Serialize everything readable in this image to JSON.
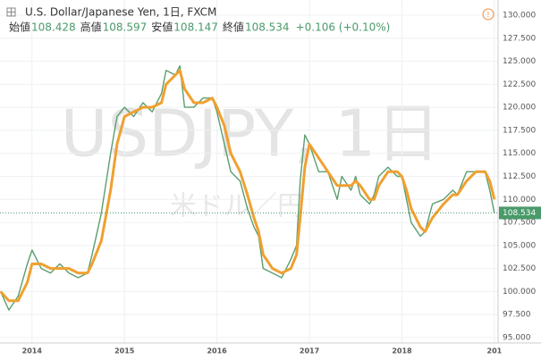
{
  "chart_data": {
    "type": "line",
    "title": "U.S. Dollar/Japanese Yen, 1日, FXCM",
    "ohlc": [
      {
        "label": "始値",
        "value": 108.428
      },
      {
        "label": "高値",
        "value": 108.597
      },
      {
        "label": "安値",
        "value": 108.147
      },
      {
        "label": "終値",
        "value": 108.534
      }
    ],
    "change_label": "+0.106 (+0.10%)",
    "watermark": "USDJPY, 1日",
    "watermark_sub": "米ドル／円",
    "last_value": 108.534,
    "x": [
      2013.66,
      2013.75,
      2013.85,
      2013.95,
      2014.0,
      2014.1,
      2014.2,
      2014.3,
      2014.4,
      2014.5,
      2014.6,
      2014.65,
      2014.75,
      2014.85,
      2014.92,
      2015.0,
      2015.1,
      2015.2,
      2015.3,
      2015.4,
      2015.45,
      2015.55,
      2015.6,
      2015.65,
      2015.75,
      2015.85,
      2015.95,
      2016.0,
      2016.08,
      2016.15,
      2016.25,
      2016.33,
      2016.4,
      2016.45,
      2016.5,
      2016.6,
      2016.7,
      2016.8,
      2016.86,
      2016.9,
      2016.95,
      2017.0,
      2017.1,
      2017.2,
      2017.3,
      2017.35,
      2017.45,
      2017.5,
      2017.55,
      2017.65,
      2017.7,
      2017.75,
      2017.85,
      2017.95,
      2018.0,
      2018.05,
      2018.1,
      2018.2,
      2018.25,
      2018.33,
      2018.45,
      2018.55,
      2018.6,
      2018.7,
      2018.8,
      2018.9,
      2018.95,
      2019.0
    ],
    "series": [
      {
        "color": "#5b9e6f",
        "values": [
          100,
          98,
          99.5,
          103,
          104.5,
          102.5,
          102,
          103,
          102,
          101.5,
          102,
          104,
          108.5,
          115,
          119,
          120,
          119,
          120.5,
          119.5,
          121.5,
          124,
          123.5,
          124.5,
          120,
          120,
          121,
          121,
          119.5,
          116,
          113,
          112,
          109,
          107,
          106,
          102.5,
          102,
          101.5,
          103.5,
          105,
          112,
          117,
          116,
          113,
          113,
          110,
          112.5,
          111,
          112.5,
          110.5,
          109.5,
          110.5,
          112.5,
          113.5,
          112.5,
          112.5,
          110,
          107.5,
          106,
          106.5,
          109.5,
          110,
          111,
          110.5,
          113,
          113,
          113,
          111,
          108.5
        ]
      },
      {
        "color": "#f0a030",
        "values": [
          100,
          99,
          99,
          101,
          103,
          103,
          102.5,
          102.5,
          102.5,
          102,
          102,
          103,
          105.5,
          111,
          116,
          119,
          119.5,
          120,
          120,
          120.5,
          122.5,
          123.5,
          124,
          122,
          120.5,
          120.5,
          121,
          120,
          118,
          115,
          113,
          110.5,
          108,
          106.5,
          104,
          102.5,
          102,
          102.5,
          104,
          108,
          113.5,
          116,
          114.5,
          113,
          111.5,
          111.5,
          111.5,
          112,
          111.5,
          110,
          110,
          111.5,
          113,
          113,
          112.5,
          111,
          109,
          107,
          106.5,
          108,
          109.5,
          110.5,
          110.5,
          112,
          113,
          113,
          112,
          110
        ]
      }
    ],
    "xlim": [
      2013.654,
      2019.04
    ],
    "xticks": [
      2014,
      2015,
      2016,
      2017,
      2018,
      {
        "value": 2019,
        "label": "201"
      }
    ],
    "ylim": [
      95,
      130
    ],
    "yticks": [
      {
        "value": 95,
        "label": "95.000"
      },
      {
        "value": 97.5,
        "label": "97.500"
      },
      {
        "value": 100,
        "label": "100.000"
      },
      {
        "value": 102.5,
        "label": "102.500"
      },
      {
        "value": 105,
        "label": "105.000"
      },
      {
        "value": 107.5,
        "label": "107.500"
      },
      {
        "value": 110,
        "label": "110.000"
      },
      {
        "value": 112.5,
        "label": "112.500"
      },
      {
        "value": 115,
        "label": "115.000"
      },
      {
        "value": 117.5,
        "label": "117.500"
      },
      {
        "value": 120,
        "label": "120.000"
      },
      {
        "value": 122.5,
        "label": "122.500"
      },
      {
        "value": 125,
        "label": "125.000"
      },
      {
        "value": 127.5,
        "label": "127.500"
      },
      {
        "value": 130,
        "label": "130.000"
      }
    ],
    "grid": true
  }
}
